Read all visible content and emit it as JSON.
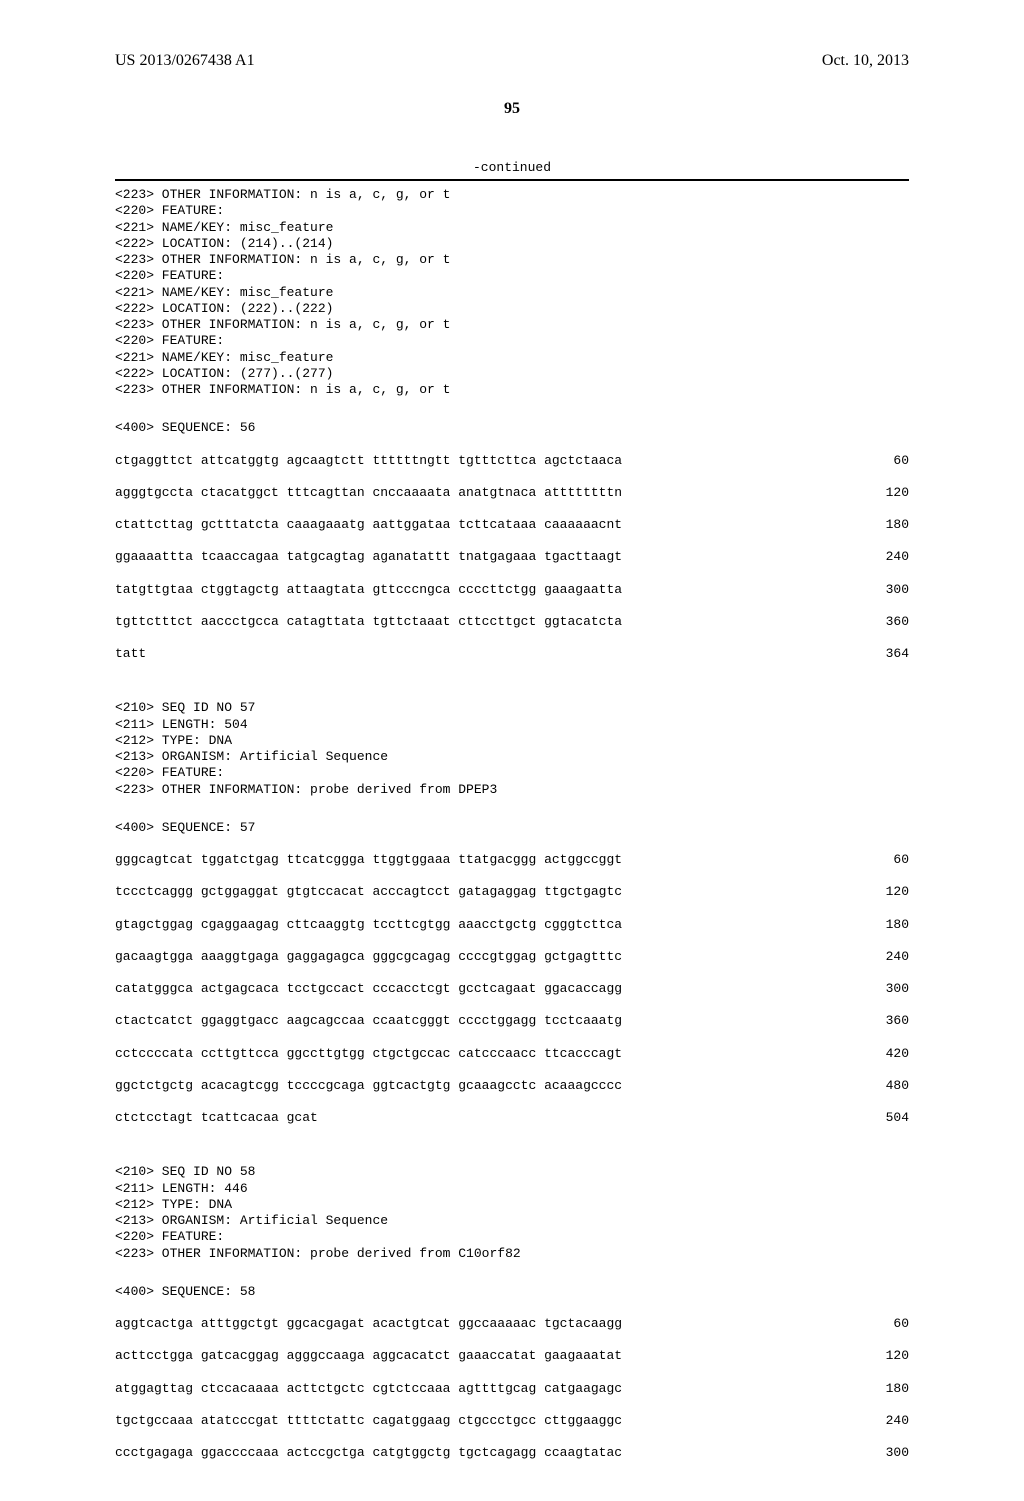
{
  "header": {
    "publication_number": "US 2013/0267438 A1",
    "publication_date": "Oct. 10, 2013"
  },
  "page_number": "95",
  "continued_label": "-continued",
  "features": [
    "<223> OTHER INFORMATION: n is a, c, g, or t",
    "<220> FEATURE:",
    "<221> NAME/KEY: misc_feature",
    "<222> LOCATION: (214)..(214)",
    "<223> OTHER INFORMATION: n is a, c, g, or t",
    "<220> FEATURE:",
    "<221> NAME/KEY: misc_feature",
    "<222> LOCATION: (222)..(222)",
    "<223> OTHER INFORMATION: n is a, c, g, or t",
    "<220> FEATURE:",
    "<221> NAME/KEY: misc_feature",
    "<222> LOCATION: (277)..(277)",
    "<223> OTHER INFORMATION: n is a, c, g, or t"
  ],
  "seq56": {
    "header": "<400> SEQUENCE: 56",
    "rows": [
      {
        "s": "ctgaggttct attcatggtg agcaagtctt ttttttngtt tgtttcttca agctctaaca",
        "n": "60"
      },
      {
        "s": "agggtgccta ctacatggct tttcagttan cnccaaaata anatgtnaca attttttttn",
        "n": "120"
      },
      {
        "s": "ctattcttag gctttatcta caaagaaatg aattggataa tcttcataaa caaaaaacnt",
        "n": "180"
      },
      {
        "s": "ggaaaattta tcaaccagaa tatgcagtag aganatattt tnatgagaaa tgacttaagt",
        "n": "240"
      },
      {
        "s": "tatgttgtaa ctggtagctg attaagtata gttcccngca ccccttctgg gaaagaatta",
        "n": "300"
      },
      {
        "s": "tgttctttct aaccctgcca catagttata tgttctaaat cttccttgct ggtacatcta",
        "n": "360"
      },
      {
        "s": "tatt",
        "n": "364"
      }
    ]
  },
  "seq57": {
    "headers": [
      "<210> SEQ ID NO 57",
      "<211> LENGTH: 504",
      "<212> TYPE: DNA",
      "<213> ORGANISM: Artificial Sequence",
      "<220> FEATURE:",
      "<223> OTHER INFORMATION: probe derived from DPEP3"
    ],
    "seq_header": "<400> SEQUENCE: 57",
    "rows": [
      {
        "s": "gggcagtcat tggatctgag ttcatcggga ttggtggaaa ttatgacggg actggccggt",
        "n": "60"
      },
      {
        "s": "tccctcaggg gctggaggat gtgtccacat acccagtcct gatagaggag ttgctgagtc",
        "n": "120"
      },
      {
        "s": "gtagctggag cgaggaagag cttcaaggtg tccttcgtgg aaacctgctg cgggtcttca",
        "n": "180"
      },
      {
        "s": "gacaagtgga aaaggtgaga gaggagagca gggcgcagag ccccgtggag gctgagtttc",
        "n": "240"
      },
      {
        "s": "catatgggca actgagcaca tcctgccact cccacctcgt gcctcagaat ggacaccagg",
        "n": "300"
      },
      {
        "s": "ctactcatct ggaggtgacc aagcagccaa ccaatcgggt cccctggagg tcctcaaatg",
        "n": "360"
      },
      {
        "s": "cctccccata ccttgttcca ggccttgtgg ctgctgccac catcccaacc ttcacccagt",
        "n": "420"
      },
      {
        "s": "ggctctgctg acacagtcgg tccccgcaga ggtcactgtg gcaaagcctc acaaagcccc",
        "n": "480"
      },
      {
        "s": "ctctcctagt tcattcacaa gcat",
        "n": "504"
      }
    ]
  },
  "seq58": {
    "headers": [
      "<210> SEQ ID NO 58",
      "<211> LENGTH: 446",
      "<212> TYPE: DNA",
      "<213> ORGANISM: Artificial Sequence",
      "<220> FEATURE:",
      "<223> OTHER INFORMATION: probe derived from C10orf82"
    ],
    "seq_header": "<400> SEQUENCE: 58",
    "rows": [
      {
        "s": "aggtcactga atttggctgt ggcacgagat acactgtcat ggccaaaaac tgctacaagg",
        "n": "60"
      },
      {
        "s": "acttcctgga gatcacggag agggccaaga aggcacatct gaaaccatat gaagaaatat",
        "n": "120"
      },
      {
        "s": "atggagttag ctccacaaaa acttctgctc cgtctccaaa agttttgcag catgaagagc",
        "n": "180"
      },
      {
        "s": "tgctgccaaa atatcccgat ttttctattc cagatggaag ctgccctgcc cttggaaggc",
        "n": "240"
      },
      {
        "s": "ccctgagaga ggaccccaaa actccgctga catgtggctg tgctcagagg ccaagtatac",
        "n": "300"
      }
    ]
  }
}
